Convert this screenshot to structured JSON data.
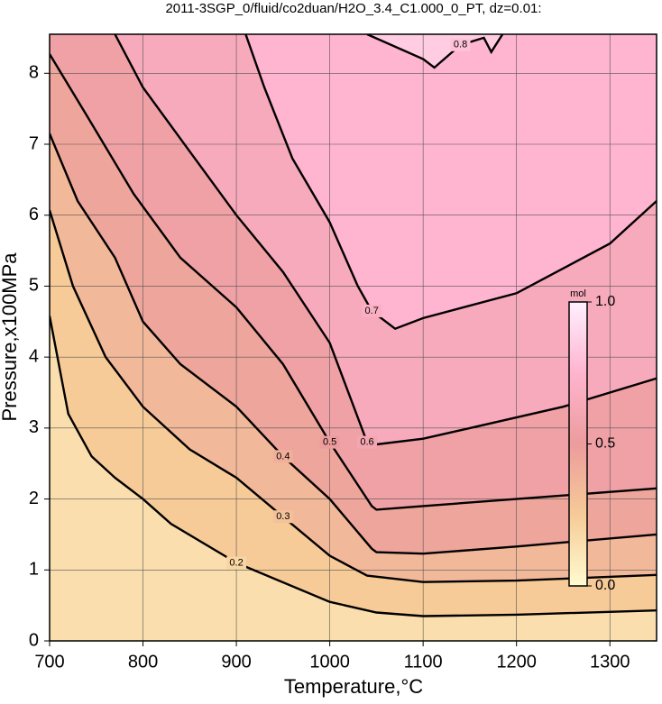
{
  "chart_data": {
    "type": "contour",
    "title": "2011-3SGP_0/fluid/co2duan/H2O_3.4_C1.000_0_PT, dz=0.01:",
    "x_label": "Temperature,°C",
    "y_label": "Pressure,x100MPa",
    "xlim": [
      700,
      1350
    ],
    "xticks": [
      700,
      800,
      900,
      1000,
      1100,
      1200,
      1300
    ],
    "ylim": [
      0,
      8.55
    ],
    "yticks": [
      0,
      1,
      2,
      3,
      4,
      5,
      6,
      7,
      8
    ],
    "grid": true,
    "colormap": [
      "#fffbd0",
      "#f6cb98",
      "#ec9c9c",
      "#ffb4cf",
      "#fff0ff"
    ],
    "colorbar": {
      "label": "mol",
      "lim": [
        0,
        1
      ],
      "ticks": [
        {
          "value": 0,
          "label": "0.0"
        },
        0.5,
        {
          "value": 1,
          "label": "1.0"
        }
      ]
    },
    "contours": [
      {
        "level": 0.2,
        "x": [
          700,
          720,
          745,
          770,
          800,
          830,
          900,
          1000,
          1050,
          1100,
          1200,
          1350
        ],
        "y": [
          4.58,
          3.2,
          2.6,
          2.3,
          2.0,
          1.65,
          1.1,
          0.55,
          0.4,
          0.35,
          0.37,
          0.43
        ]
      },
      {
        "level": 0.3,
        "x": [
          700,
          725,
          760,
          800,
          850,
          900,
          950,
          1000,
          1040,
          1100,
          1200,
          1350
        ],
        "y": [
          6.07,
          5.0,
          4.0,
          3.3,
          2.7,
          2.3,
          1.75,
          1.2,
          0.92,
          0.83,
          0.85,
          0.93
        ]
      },
      {
        "level": 0.4,
        "x": [
          700,
          730,
          770,
          800,
          840,
          900,
          950,
          1000,
          1045,
          1050,
          1100,
          1200,
          1350
        ],
        "y": [
          7.15,
          6.2,
          5.4,
          4.5,
          3.9,
          3.3,
          2.6,
          2.0,
          1.3,
          1.25,
          1.23,
          1.33,
          1.5
        ]
      },
      {
        "level": 0.5,
        "x": [
          700,
          740,
          790,
          840,
          900,
          950,
          1000,
          1045,
          1050,
          1100,
          1200,
          1350
        ],
        "y": [
          8.27,
          7.4,
          6.3,
          5.4,
          4.7,
          3.9,
          2.8,
          1.9,
          1.85,
          1.9,
          2.0,
          2.15
        ]
      },
      {
        "level": 0.6,
        "x": [
          770,
          800,
          850,
          900,
          950,
          1000,
          1040,
          1050,
          1100,
          1150,
          1250,
          1350
        ],
        "y": [
          8.55,
          7.8,
          6.9,
          6.0,
          5.2,
          4.2,
          2.8,
          2.77,
          2.85,
          3.0,
          3.3,
          3.7
        ]
      },
      {
        "level": 0.7,
        "x": [
          910,
          930,
          960,
          1000,
          1030,
          1045,
          1070,
          1100,
          1200,
          1300,
          1350
        ],
        "y": [
          8.55,
          7.8,
          6.8,
          5.9,
          5.0,
          4.65,
          4.4,
          4.55,
          4.9,
          5.6,
          6.2
        ]
      },
      {
        "level": 0.8,
        "x": [
          1040,
          1100,
          1112,
          1140,
          1165,
          1173,
          1185
        ],
        "y": [
          8.55,
          8.2,
          8.08,
          8.4,
          8.5,
          8.3,
          8.55
        ]
      }
    ]
  }
}
